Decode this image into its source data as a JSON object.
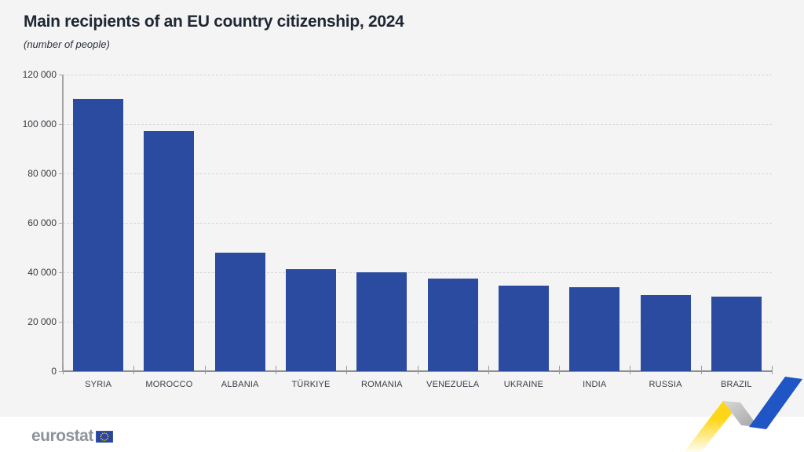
{
  "header": {
    "title": "Main recipients of an EU country citizenship, 2024",
    "subtitle": "(number of people)"
  },
  "chart_data": {
    "type": "bar",
    "title": "Main recipients of an EU country citizenship, 2024",
    "subtitle": "(number of people)",
    "categories": [
      "SYRIA",
      "MOROCCO",
      "ALBANIA",
      "TÜRKIYE",
      "ROMANIA",
      "VENEZUELA",
      "UKRAINE",
      "INDIA",
      "RUSSIA",
      "BRAZIL"
    ],
    "values": [
      110100,
      97200,
      48000,
      41300,
      40000,
      37600,
      34500,
      33900,
      30700,
      30200
    ],
    "xlabel": "",
    "ylabel": "",
    "ylim": [
      0,
      120000
    ],
    "ytick_step": 20000,
    "ytick_labels": [
      "0",
      "20 000",
      "40 000",
      "60 000",
      "80 000",
      "100 000",
      "120 000"
    ],
    "grid": "horizontal-dashed",
    "legend": "none",
    "bar_color": "#2a4b9f",
    "plot_background": "#f4f4f4"
  },
  "footer": {
    "logo_text": "eurostat"
  },
  "colors": {
    "panel_background": "#f4f4f4",
    "footer_background": "#ffffff",
    "bar_blue": "#2a4b9f",
    "ribbon_blue": "#1f55c4",
    "ribbon_yellow": "#ffd617",
    "ribbon_gray": "#b5b5b5",
    "flag_blue": "#2746a4",
    "star_yellow": "#ffcc00",
    "title_text": "#1f2734",
    "axis_text": "#373b42"
  }
}
